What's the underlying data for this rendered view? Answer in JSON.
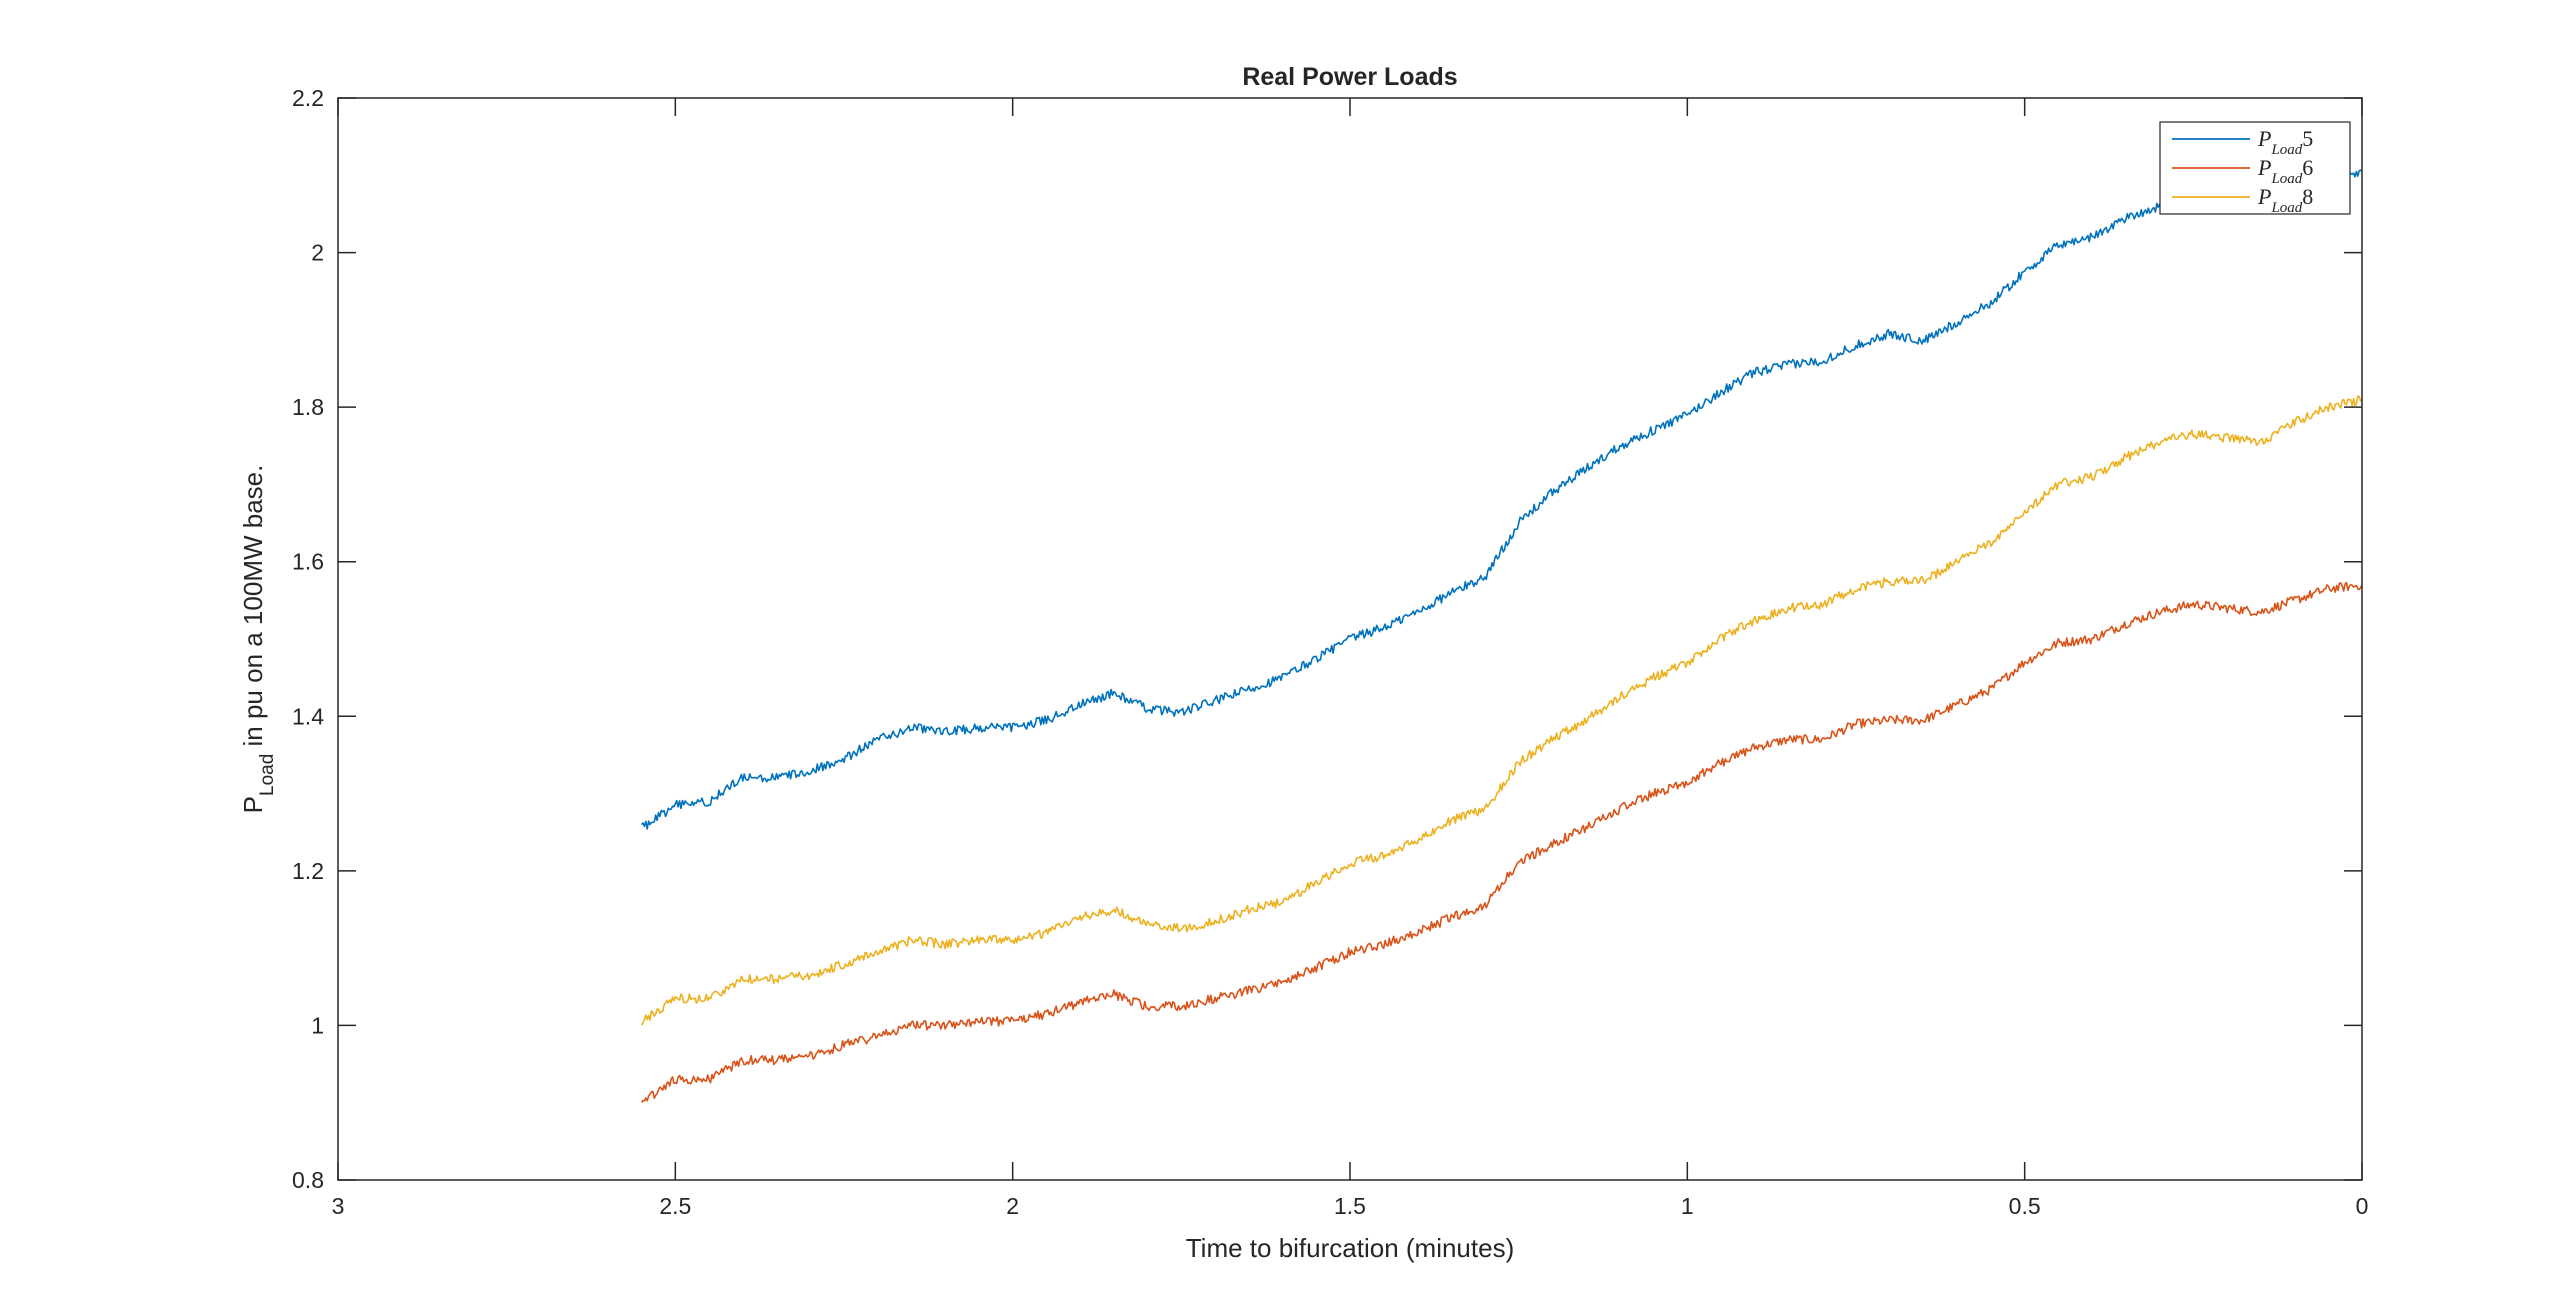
{
  "chart_data": {
    "type": "line",
    "title": "Real Power Loads",
    "xlabel": "Time to bifurcation (minutes)",
    "ylabel": {
      "main": "P",
      "subscript": "Load",
      "rest": " in pu on a 100MW base."
    },
    "xlim": [
      3,
      0
    ],
    "x_reversed": true,
    "ylim": [
      0.8,
      2.2
    ],
    "xticks": [
      3,
      2.5,
      2,
      1.5,
      1,
      0.5,
      0
    ],
    "xtick_labels": [
      "3",
      "2.5",
      "2",
      "1.5",
      "1",
      "0.5",
      "0"
    ],
    "yticks": [
      0.8,
      1,
      1.2,
      1.4,
      1.6,
      1.8,
      2,
      2.2
    ],
    "ytick_labels": [
      "0.8",
      "1",
      "1.2",
      "1.4",
      "1.6",
      "1.8",
      "2",
      "2.2"
    ],
    "grid": false,
    "legend_position": "top-right",
    "x": [
      2.55,
      2.5,
      2.45,
      2.4,
      2.35,
      2.3,
      2.25,
      2.2,
      2.15,
      2.1,
      2.05,
      2.0,
      1.95,
      1.9,
      1.85,
      1.8,
      1.75,
      1.7,
      1.65,
      1.6,
      1.55,
      1.5,
      1.45,
      1.4,
      1.35,
      1.3,
      1.25,
      1.2,
      1.15,
      1.1,
      1.05,
      1.0,
      0.95,
      0.9,
      0.85,
      0.8,
      0.75,
      0.7,
      0.65,
      0.6,
      0.55,
      0.5,
      0.45,
      0.4,
      0.35,
      0.3,
      0.25,
      0.2,
      0.15,
      0.1,
      0.05,
      0.0
    ],
    "series": [
      {
        "name": "P_Load5",
        "legend_main": "P",
        "legend_sub": "Load",
        "legend_num": "5",
        "color": "#0072BD",
        "values": [
          1.255,
          1.285,
          1.29,
          1.32,
          1.32,
          1.33,
          1.345,
          1.37,
          1.385,
          1.38,
          1.385,
          1.385,
          1.395,
          1.415,
          1.43,
          1.41,
          1.405,
          1.42,
          1.435,
          1.45,
          1.475,
          1.5,
          1.515,
          1.535,
          1.56,
          1.58,
          1.65,
          1.69,
          1.72,
          1.75,
          1.77,
          1.79,
          1.82,
          1.845,
          1.855,
          1.86,
          1.88,
          1.895,
          1.885,
          1.91,
          1.935,
          1.975,
          2.01,
          2.02,
          2.045,
          2.06,
          2.075,
          2.085,
          2.09,
          2.095,
          2.1,
          2.105
        ]
      },
      {
        "name": "P_Load6",
        "legend_main": "P",
        "legend_sub": "Load",
        "legend_num": "6",
        "color": "#D95319",
        "values": [
          0.9,
          0.93,
          0.93,
          0.955,
          0.955,
          0.96,
          0.975,
          0.985,
          1.0,
          1.0,
          1.005,
          1.005,
          1.015,
          1.03,
          1.04,
          1.025,
          1.025,
          1.035,
          1.045,
          1.055,
          1.075,
          1.095,
          1.105,
          1.12,
          1.14,
          1.155,
          1.21,
          1.235,
          1.255,
          1.28,
          1.3,
          1.315,
          1.34,
          1.36,
          1.37,
          1.37,
          1.39,
          1.395,
          1.395,
          1.415,
          1.435,
          1.47,
          1.495,
          1.5,
          1.52,
          1.535,
          1.545,
          1.54,
          1.535,
          1.55,
          1.565,
          1.57
        ]
      },
      {
        "name": "P_Load8",
        "legend_main": "P",
        "legend_sub": "Load",
        "legend_num": "8",
        "color": "#EDB120",
        "values": [
          1.005,
          1.035,
          1.035,
          1.06,
          1.06,
          1.065,
          1.08,
          1.095,
          1.11,
          1.105,
          1.11,
          1.11,
          1.12,
          1.14,
          1.15,
          1.13,
          1.125,
          1.135,
          1.15,
          1.16,
          1.185,
          1.21,
          1.22,
          1.24,
          1.265,
          1.28,
          1.34,
          1.37,
          1.395,
          1.425,
          1.45,
          1.47,
          1.5,
          1.525,
          1.54,
          1.545,
          1.565,
          1.575,
          1.575,
          1.6,
          1.625,
          1.665,
          1.7,
          1.71,
          1.735,
          1.755,
          1.765,
          1.76,
          1.755,
          1.78,
          1.8,
          1.81
        ]
      }
    ]
  }
}
